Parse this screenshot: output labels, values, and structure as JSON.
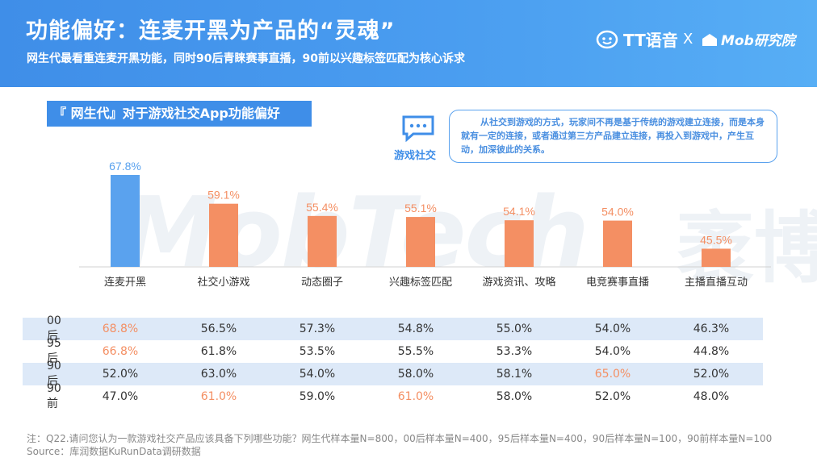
{
  "header": {
    "title": "功能偏好：连麦开黑为产品的“灵魂”",
    "subtitle": "网生代最看重连麦开黑功能，同时90后青睐赛事直播，90前以兴趣标签匹配为核心诉求",
    "logo_tt": "TT语音",
    "logo_x": "X",
    "logo_mob": "Mob研究院"
  },
  "section_label": "『 网生代』对于游戏社交App功能偏好",
  "social": {
    "label": "游戏社交",
    "note": "从社交到游戏的方式，玩家间不再是基于传统的游戏建立连接，而是本身就有一定的连接，或者通过第三方产品建立连接，再投入到游戏中，产生互动，加深彼此的关系。"
  },
  "watermark": {
    "text": "MobTech",
    "text2": "袤博"
  },
  "colors": {
    "blue": "#5aa2ee",
    "orange": "#f48f63",
    "header": "#3f8ee8",
    "shade": "#dde9f8"
  },
  "chart_data": {
    "type": "bar",
    "categories": [
      "连麦开黑",
      "社交小游戏",
      "动态圈子",
      "兴趣标签匹配",
      "游戏资讯、攻略",
      "电竞赛事直播",
      "主播直播互动"
    ],
    "values": [
      67.8,
      59.1,
      55.4,
      55.1,
      54.1,
      54.0,
      45.5
    ],
    "value_labels": [
      "67.8%",
      "59.1%",
      "55.4%",
      "55.1%",
      "54.1%",
      "54.0%",
      "45.5%"
    ],
    "highlight_index": 0,
    "ylim": [
      40,
      70
    ],
    "xlabel": "",
    "ylabel": "",
    "grid": false
  },
  "table": {
    "rows": [
      {
        "label": "00后",
        "values": [
          "68.8%",
          "56.5%",
          "57.3%",
          "54.8%",
          "55.0%",
          "54.0%",
          "46.3%"
        ],
        "highlight": [
          0
        ]
      },
      {
        "label": "95后",
        "values": [
          "66.8%",
          "61.8%",
          "53.5%",
          "55.5%",
          "53.3%",
          "54.0%",
          "44.8%"
        ],
        "highlight": [
          0
        ]
      },
      {
        "label": "90后",
        "values": [
          "52.0%",
          "63.0%",
          "54.0%",
          "58.0%",
          "58.1%",
          "65.0%",
          "52.0%"
        ],
        "highlight": [
          5
        ]
      },
      {
        "label": "90前",
        "values": [
          "47.0%",
          "61.0%",
          "59.0%",
          "61.0%",
          "58.0%",
          "52.0%",
          "48.0%"
        ],
        "highlight": [
          1,
          3
        ]
      }
    ]
  },
  "footer": {
    "note": "注：Q22.请问您认为一款游戏社交产品应该具备下列哪些功能？网生代样本量N=800，00后样本量N=400，95后样本量N=400，90后样本量N=100，90前样本量N=100",
    "source": "Source：库润数据KuRunData调研数据"
  }
}
